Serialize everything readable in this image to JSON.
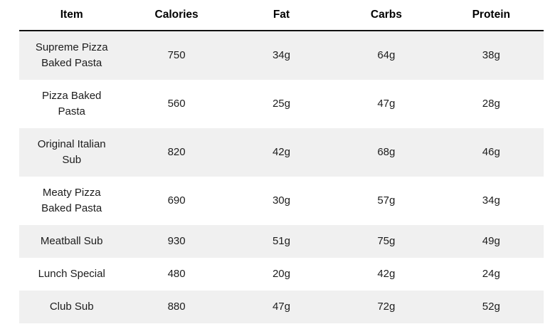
{
  "colors": {
    "background": "#ffffff",
    "stripe_row": "#f0f0f0",
    "header_rule": "#111111",
    "header_text": "#000000",
    "body_text": "#1c1c1c"
  },
  "table": {
    "columns": [
      "Item",
      "Calories",
      "Fat",
      "Carbs",
      "Protein"
    ],
    "rows": [
      {
        "item": "Supreme Pizza Baked Pasta",
        "calories": "750",
        "fat": "34g",
        "carbs": "64g",
        "protein": "38g"
      },
      {
        "item": "Pizza Baked Pasta",
        "calories": "560",
        "fat": "25g",
        "carbs": "47g",
        "protein": "28g"
      },
      {
        "item": "Original Italian Sub",
        "calories": "820",
        "fat": "42g",
        "carbs": "68g",
        "protein": "46g"
      },
      {
        "item": "Meaty Pizza Baked Pasta",
        "calories": "690",
        "fat": "30g",
        "carbs": "57g",
        "protein": "34g"
      },
      {
        "item": "Meatball Sub",
        "calories": "930",
        "fat": "51g",
        "carbs": "75g",
        "protein": "49g"
      },
      {
        "item": "Lunch Special",
        "calories": "480",
        "fat": "20g",
        "carbs": "42g",
        "protein": "24g"
      },
      {
        "item": "Club Sub",
        "calories": "880",
        "fat": "47g",
        "carbs": "72g",
        "protein": "52g"
      }
    ]
  },
  "chart_data": {
    "type": "table",
    "title": "",
    "columns": [
      "Item",
      "Calories",
      "Fat",
      "Carbs",
      "Protein"
    ],
    "rows": [
      [
        "Supreme Pizza Baked Pasta",
        750,
        "34g",
        "64g",
        "38g"
      ],
      [
        "Pizza Baked Pasta",
        560,
        "25g",
        "47g",
        "28g"
      ],
      [
        "Original Italian Sub",
        820,
        "42g",
        "68g",
        "46g"
      ],
      [
        "Meaty Pizza Baked Pasta",
        690,
        "30g",
        "57g",
        "34g"
      ],
      [
        "Meatball Sub",
        930,
        "51g",
        "75g",
        "49g"
      ],
      [
        "Lunch Special",
        480,
        "20g",
        "42g",
        "24g"
      ],
      [
        "Club Sub",
        880,
        "47g",
        "72g",
        "52g"
      ]
    ],
    "layout_hints": {
      "striped": true,
      "stripe_rows": "odd",
      "header_rule": "thick-black",
      "gridlines": false,
      "text_align": "center"
    }
  }
}
